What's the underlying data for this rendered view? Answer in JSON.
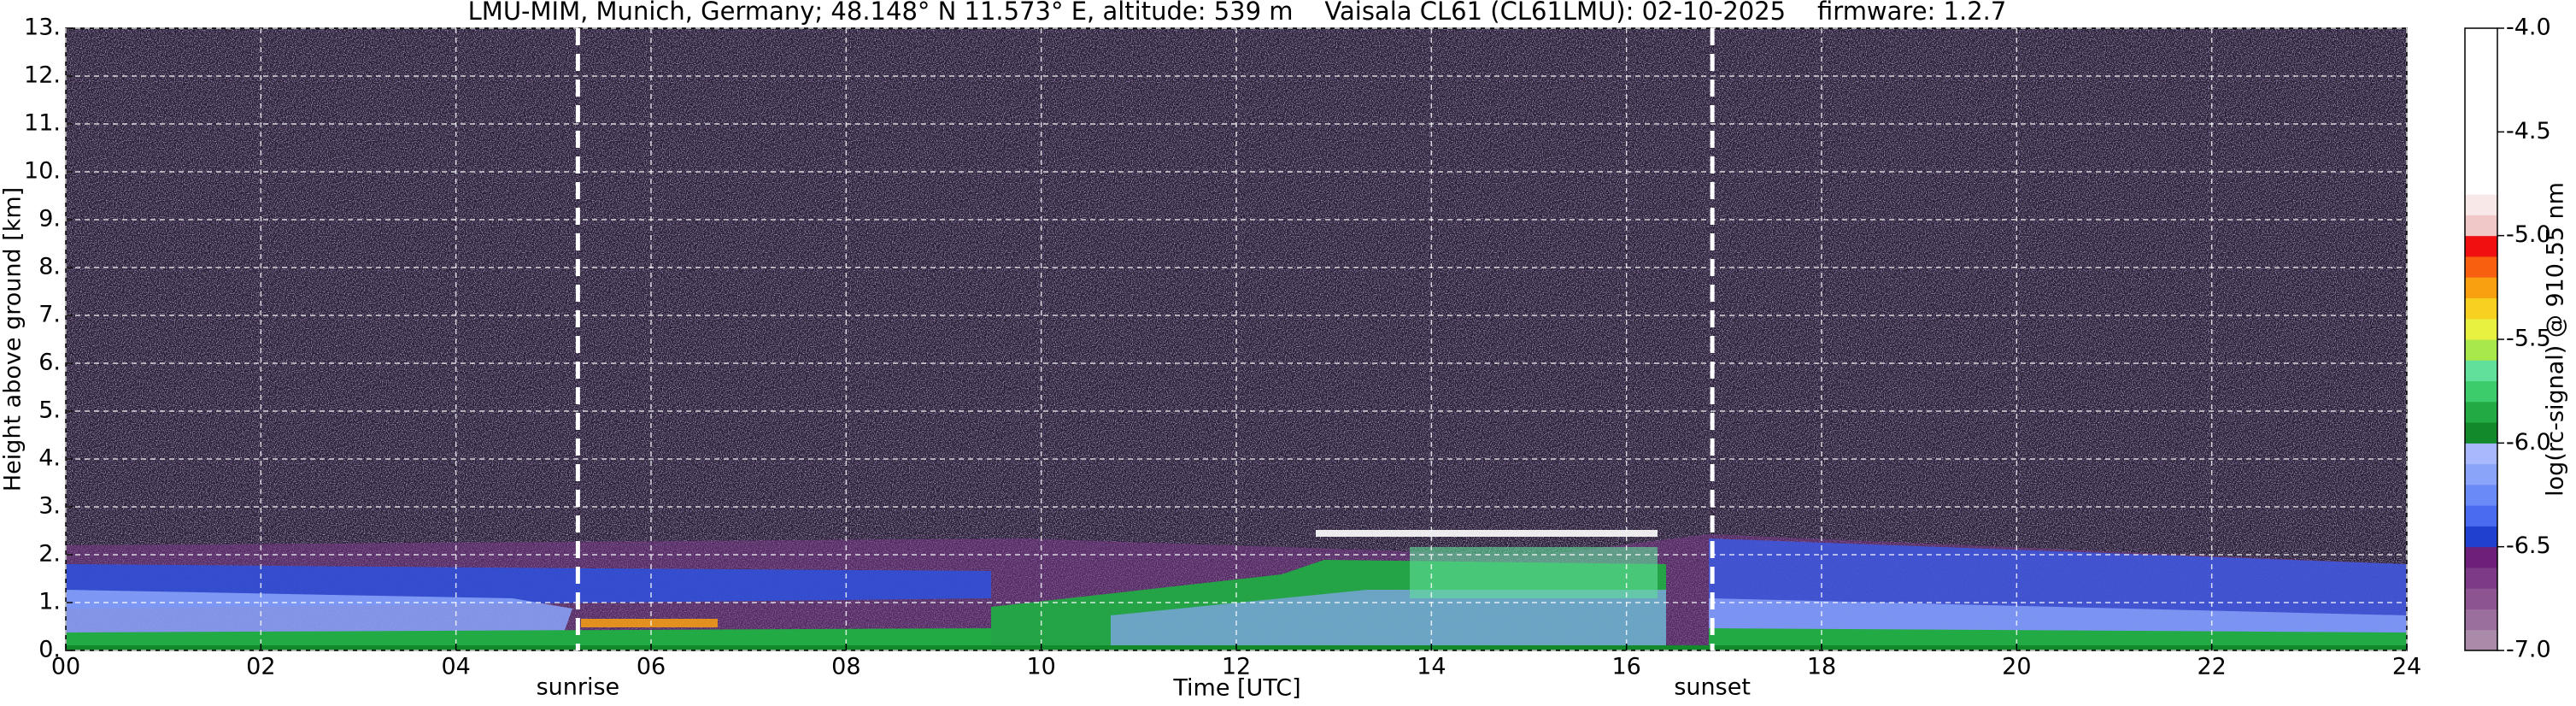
{
  "chart_data": {
    "type": "heatmap",
    "title": "LMU-MIM, Munich, Germany; 48.148° N 11.573° E, altitude: 539 m    Vaisala CL61 (CL61LMU): 02-10-2025    firmware: 1.2.7",
    "x_label": "Time [UTC]",
    "y_label": "Height above ground [km]",
    "colorbar_label": "log(rc-signal) @ 910.55 nm",
    "xlim": [
      0,
      24
    ],
    "xticks": [
      {
        "value": 0,
        "label": "00"
      },
      {
        "value": 2,
        "label": "02"
      },
      {
        "value": 4,
        "label": "04"
      },
      {
        "value": 6,
        "label": "06"
      },
      {
        "value": 8,
        "label": "08"
      },
      10,
      12,
      14,
      16,
      18,
      20,
      22,
      24
    ],
    "ylim": [
      0,
      13
    ],
    "yticks": [
      {
        "value": 0,
        "label": "0."
      },
      {
        "value": 1,
        "label": "1."
      },
      {
        "value": 2,
        "label": "2."
      },
      {
        "value": 3,
        "label": "3."
      },
      {
        "value": 4,
        "label": "4."
      },
      {
        "value": 5,
        "label": "5."
      },
      {
        "value": 6,
        "label": "6."
      },
      {
        "value": 7,
        "label": "7."
      },
      {
        "value": 8,
        "label": "8."
      },
      {
        "value": 9,
        "label": "9."
      },
      {
        "value": 10,
        "label": "10."
      },
      {
        "value": 11,
        "label": "11."
      },
      {
        "value": 12,
        "label": "12."
      },
      {
        "value": 13,
        "label": "13."
      }
    ],
    "clim": [
      -7,
      -4
    ],
    "cticks": [
      {
        "value": -4,
        "label": "-4.0"
      },
      -4.5,
      {
        "value": -5,
        "label": "-5.0"
      },
      -5.5,
      {
        "value": -6,
        "label": "-6.0"
      },
      -6.5,
      {
        "value": -7,
        "label": "-7.0"
      }
    ],
    "colorbar_colors": [
      "#a98aa9",
      "#9b6f9d",
      "#8c5491",
      "#7d3a86",
      "#6e1f7a",
      "#2040d0",
      "#4a6af0",
      "#6a8af8",
      "#8aa4fa",
      "#a8b8fc",
      "#128a2c",
      "#22aa44",
      "#3ccc6c",
      "#60e09a",
      "#a8e84a",
      "#e8f040",
      "#f8d020",
      "#f8a010",
      "#f86010",
      "#f01010",
      "#f0c8c8",
      "#f8e8e8",
      "#ffffff",
      "#ffffff",
      "#ffffff",
      "#ffffff",
      "#ffffff",
      "#ffffff",
      "#ffffff",
      "#ffffff"
    ],
    "annotations": [
      {
        "text": "sunrise",
        "x": 5.25
      },
      {
        "text": "sunset",
        "x": 16.88
      }
    ],
    "grid": true
  }
}
